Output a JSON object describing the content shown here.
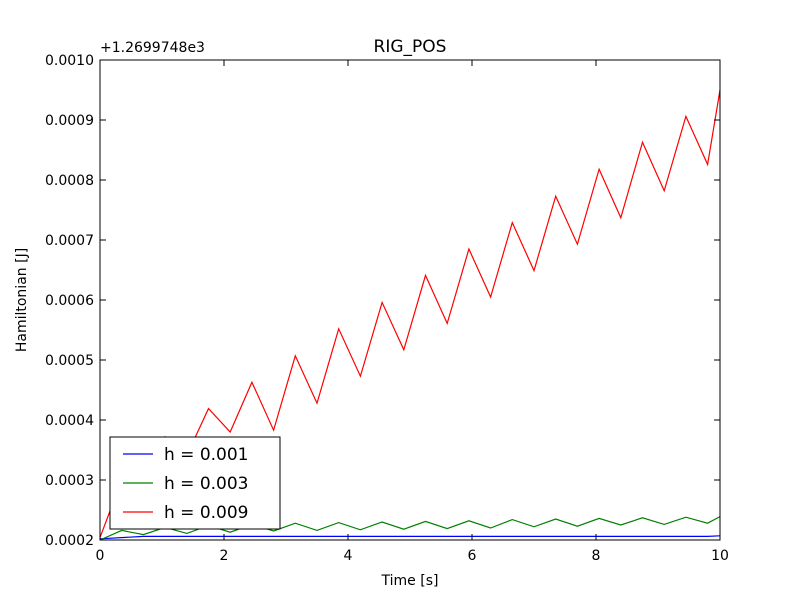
{
  "chart_data": {
    "type": "line",
    "title": "RIG_POS",
    "xlabel": "Time [s]",
    "ylabel": "Hamiltonian [J]",
    "offset_label": "+1.2699748e3",
    "xlim": [
      0,
      10
    ],
    "ylim": [
      0.0002,
      0.001
    ],
    "x_ticks": [
      0,
      2,
      4,
      6,
      8,
      10
    ],
    "x_tick_labels": [
      "0",
      "2",
      "4",
      "6",
      "8",
      "10"
    ],
    "y_ticks": [
      0.0002,
      0.0003,
      0.0004,
      0.0005,
      0.0006,
      0.0007,
      0.0008,
      0.0009,
      0.001
    ],
    "y_tick_labels": [
      "0.0002",
      "0.0003",
      "0.0004",
      "0.0005",
      "0.0006",
      "0.0007",
      "0.0008",
      "0.0009",
      "0.0010"
    ],
    "grid": false,
    "legend_position": "lower-left",
    "series": [
      {
        "name": "h = 0.001",
        "color": "#0000ff",
        "x": [
          0,
          0.7,
          1.4,
          2.1,
          2.8,
          3.5,
          4.2,
          4.9,
          5.6,
          6.3,
          7.0,
          7.7,
          8.4,
          9.1,
          9.8,
          10
        ],
        "y": [
          0.000202,
          0.000206,
          0.000206,
          0.000206,
          0.000206,
          0.000206,
          0.000206,
          0.000206,
          0.000206,
          0.000206,
          0.000206,
          0.000206,
          0.000206,
          0.000206,
          0.000206,
          0.000207
        ]
      },
      {
        "name": "h = 0.003",
        "color": "#008000",
        "x": [
          0,
          0.35,
          0.7,
          1.05,
          1.4,
          1.75,
          2.1,
          2.45,
          2.8,
          3.15,
          3.5,
          3.85,
          4.2,
          4.55,
          4.9,
          5.25,
          5.6,
          5.95,
          6.3,
          6.65,
          7.0,
          7.35,
          7.7,
          8.05,
          8.4,
          8.75,
          9.1,
          9.45,
          9.8,
          10
        ],
        "y": [
          0.0002,
          0.000216,
          0.000209,
          0.000221,
          0.000211,
          0.000224,
          0.000213,
          0.000226,
          0.000215,
          0.000228,
          0.000216,
          0.000229,
          0.000217,
          0.00023,
          0.000218,
          0.000231,
          0.000219,
          0.000232,
          0.00022,
          0.000234,
          0.000222,
          0.000235,
          0.000223,
          0.000236,
          0.000225,
          0.000237,
          0.000226,
          0.000238,
          0.000228,
          0.000239
        ]
      },
      {
        "name": "h = 0.009",
        "color": "#ff0000",
        "x": [
          0,
          0.35,
          0.7,
          1.05,
          1.4,
          1.75,
          2.1,
          2.45,
          2.8,
          3.15,
          3.5,
          3.85,
          4.2,
          4.55,
          4.9,
          5.25,
          5.6,
          5.95,
          6.3,
          6.65,
          7.0,
          7.35,
          7.7,
          8.05,
          8.4,
          8.75,
          9.1,
          9.45,
          9.8,
          10
        ],
        "y": [
          0.000204,
          0.0003,
          0.00027,
          0.000372,
          0.000341,
          0.000419,
          0.00038,
          0.000463,
          0.000383,
          0.000507,
          0.000428,
          0.000552,
          0.000473,
          0.000596,
          0.000517,
          0.000641,
          0.000561,
          0.000685,
          0.000605,
          0.000729,
          0.000649,
          0.000773,
          0.000693,
          0.000818,
          0.000737,
          0.000863,
          0.000782,
          0.000906,
          0.000826,
          0.00095
        ]
      }
    ]
  }
}
